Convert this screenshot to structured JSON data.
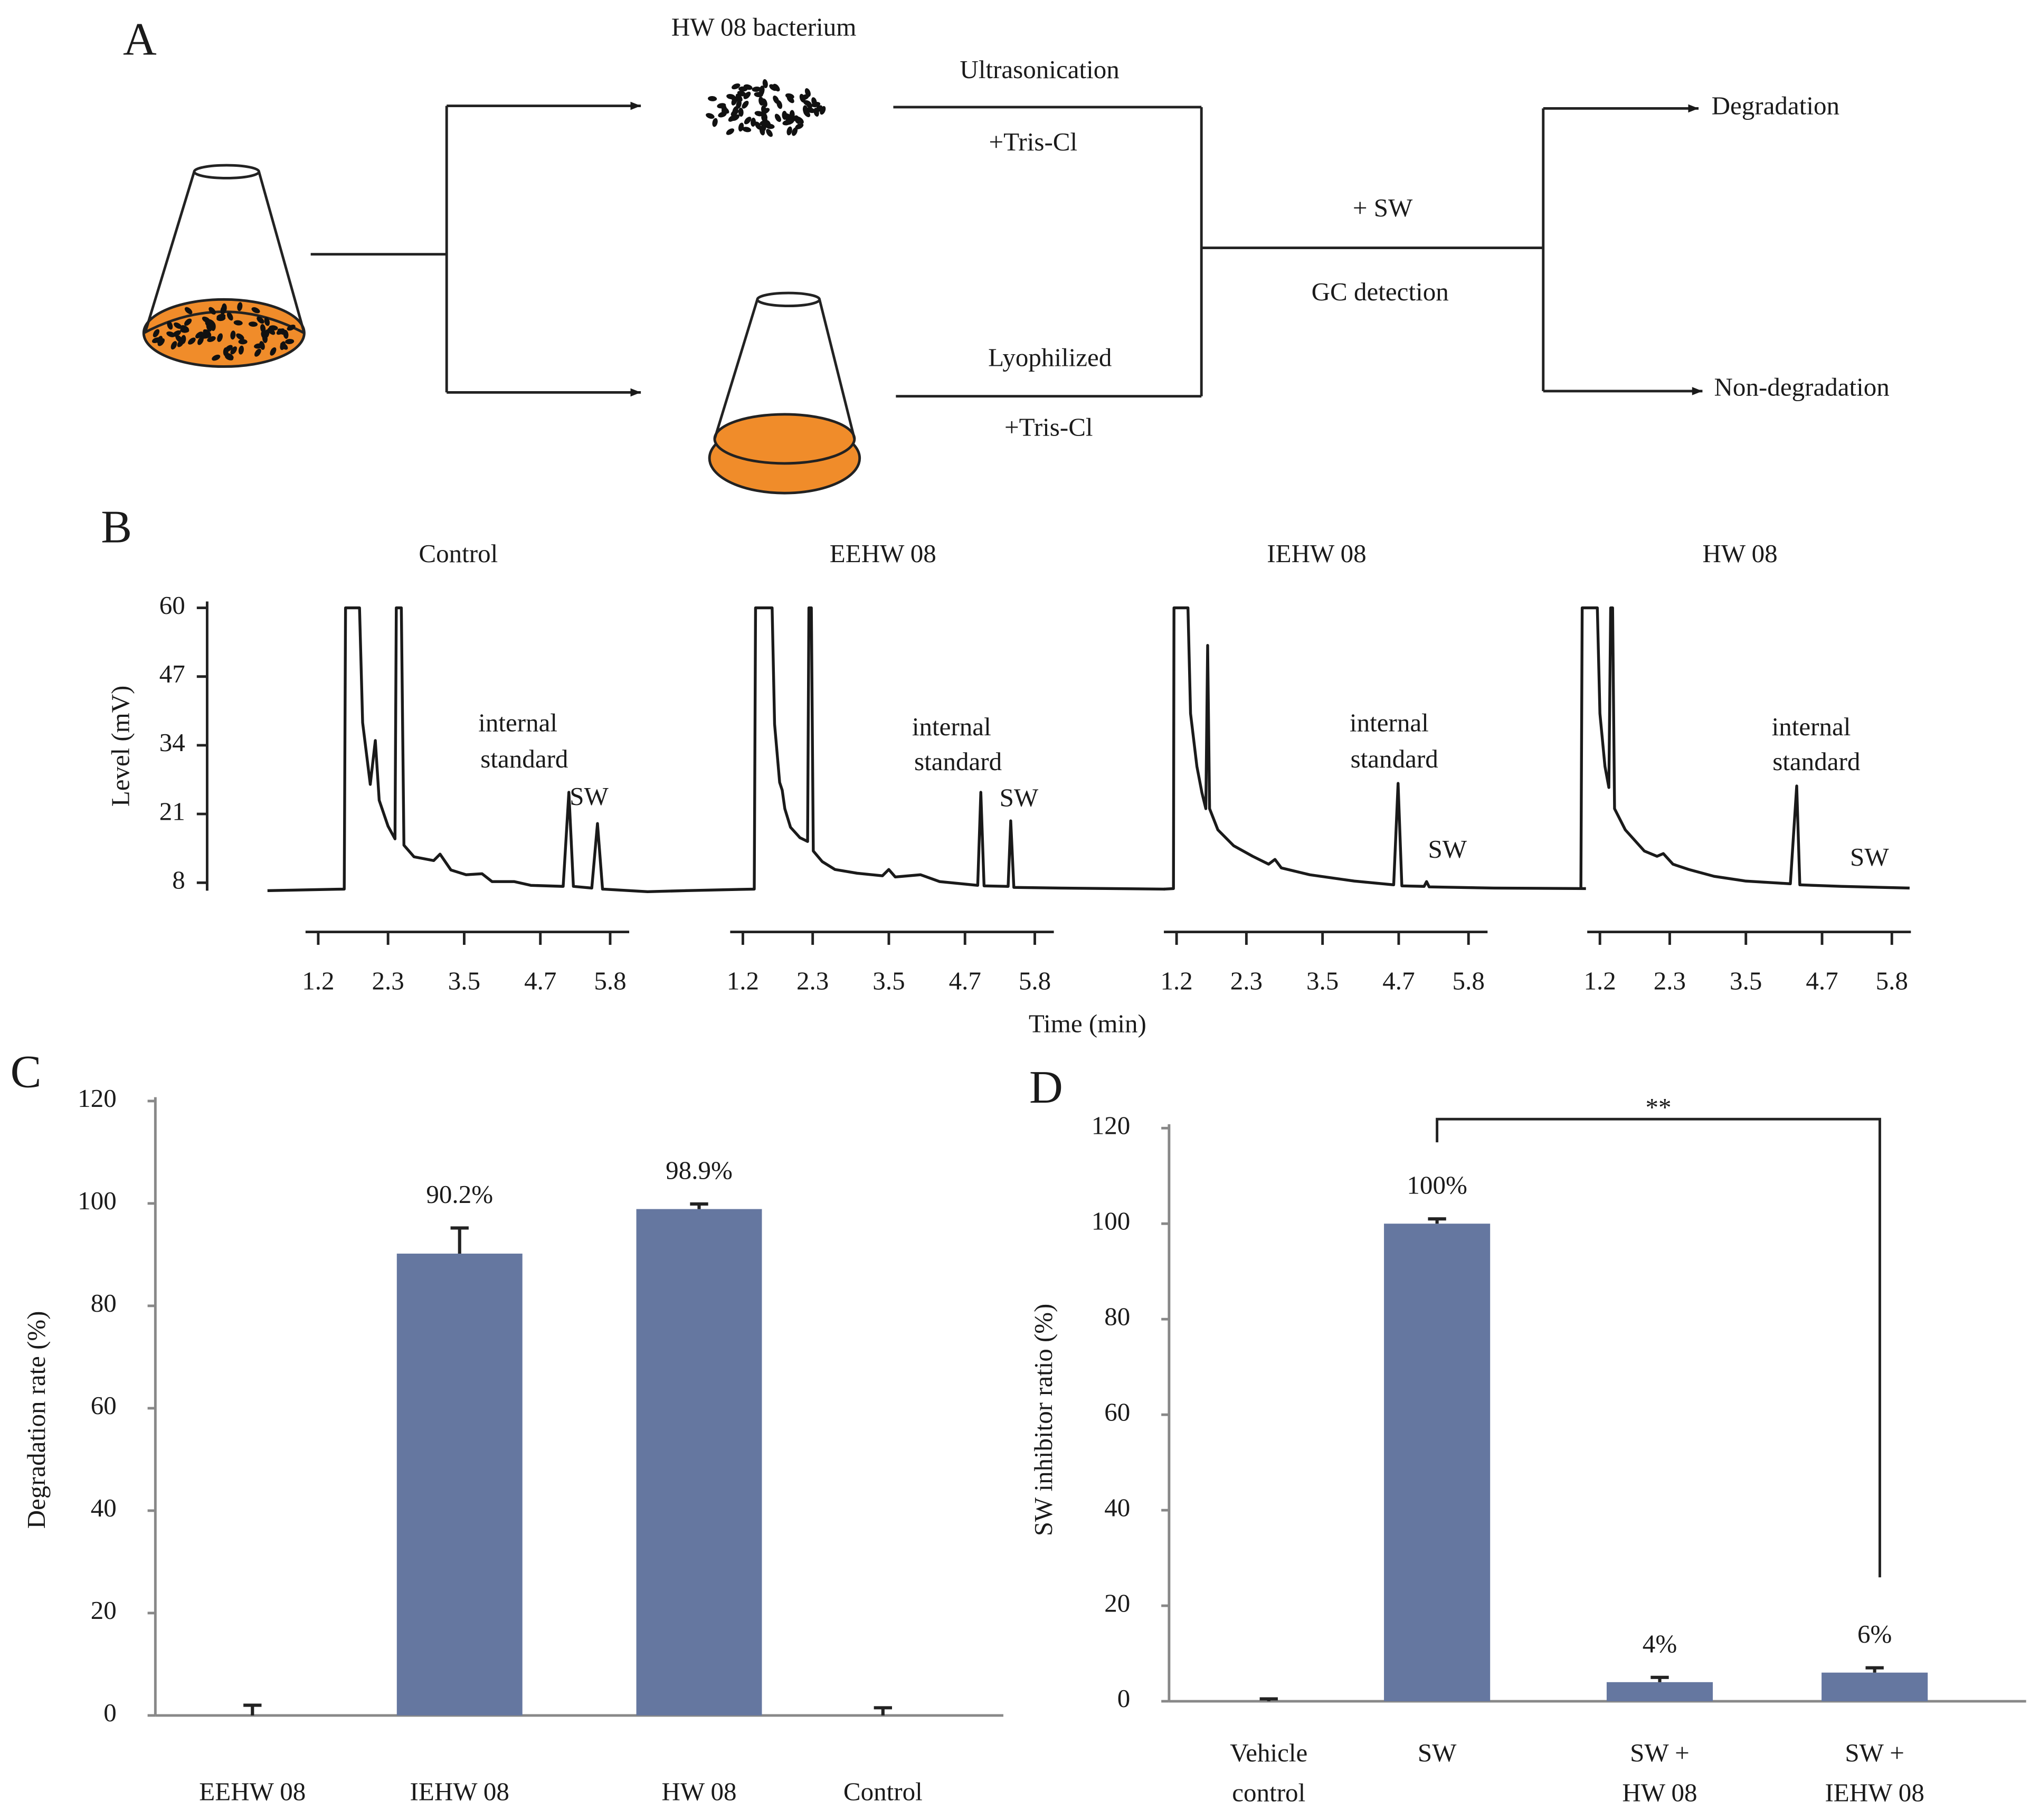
{
  "diagram": {
    "label": "A",
    "bacterium": "HW 08 bacterium",
    "step1_top": "Ultrasonication",
    "step1_bottom": "+Tris-Cl",
    "step2_top": "Lyophilized",
    "step2_bottom": "+Tris-Cl",
    "merge_top": "+ SW",
    "merge_bottom": "GC detection",
    "outcome_1": "Degradation",
    "outcome_2": "Non-degradation"
  },
  "chart_data": [
    {
      "type": "line",
      "label": "B",
      "ylabel": "Level (mV)",
      "xlabel": "Time (min)",
      "ylim": [
        6.5,
        61.2
      ],
      "yticks": [
        8,
        21,
        34,
        47,
        60
      ],
      "xlim": [
        1.0,
        6.1
      ],
      "xticks": [
        1.2,
        2.3,
        3.5,
        4.7,
        5.8
      ],
      "color": "#1a1a1a",
      "series": [
        {
          "name": "Control",
          "annotations": [
            "internal",
            "standard",
            "SW"
          ],
          "x": [
            0.4,
            1.61,
            1.63,
            1.85,
            1.9,
            2.02,
            2.1,
            2.16,
            2.3,
            2.41,
            2.43,
            2.51,
            2.55,
            2.71,
            3.02,
            3.12,
            3.29,
            3.53,
            3.78,
            3.94,
            4.29,
            4.55,
            5.06,
            5.15,
            5.22,
            5.51,
            5.6,
            5.68,
            6.39,
            7.0
          ],
          "values": [
            6.5,
            6.8,
            60,
            60,
            38.3,
            26.6,
            34.9,
            23.6,
            18.7,
            16.3,
            60,
            60,
            15.1,
            12.9,
            12.2,
            13.4,
            10.4,
            9.5,
            9.7,
            8.2,
            8.2,
            7.5,
            7.3,
            25.1,
            7.3,
            7.0,
            19.2,
            6.8,
            6.3,
            6.5
          ]
        },
        {
          "name": "EEHW 08",
          "annotations": [
            "internal",
            "standard",
            "SW"
          ],
          "x": [
            0.3,
            1.38,
            1.4,
            1.66,
            1.7,
            1.78,
            1.82,
            1.86,
            1.95,
            2.1,
            2.22,
            2.24,
            2.28,
            2.31,
            2.45,
            2.65,
            3.0,
            3.4,
            3.5,
            3.6,
            4.0,
            4.3,
            4.9,
            4.95,
            5.0,
            5.38,
            5.42,
            5.47,
            6.2,
            7.85
          ],
          "values": [
            6.5,
            6.8,
            60,
            60,
            38,
            27,
            25.5,
            22,
            18.5,
            16.5,
            15.8,
            60,
            60,
            14,
            12,
            10.5,
            9.8,
            9.3,
            10.5,
            9.1,
            9.5,
            8.2,
            7.5,
            25.1,
            7.4,
            7.3,
            19.7,
            7.1,
            7.0,
            6.8
          ]
        },
        {
          "name": "IEHW 08",
          "annotations": [
            "internal",
            "standard",
            "SW"
          ],
          "x": [
            1.0,
            1.15,
            1.16,
            1.38,
            1.42,
            1.52,
            1.6,
            1.66,
            1.69,
            1.72,
            1.85,
            2.1,
            2.4,
            2.65,
            2.75,
            2.85,
            3.3,
            4.0,
            4.62,
            4.69,
            4.75,
            5.1,
            5.14,
            5.18,
            6.2,
            7.65
          ],
          "values": [
            6.8,
            6.9,
            60,
            60,
            40,
            30,
            25,
            22,
            52.9,
            22,
            18,
            15,
            13,
            11.5,
            12.4,
            10.8,
            9.5,
            8.3,
            7.6,
            26.8,
            7.4,
            7.3,
            8.2,
            7.2,
            7.0,
            6.9
          ]
        },
        {
          "name": "HW 08",
          "annotations": [
            "internal",
            "standard",
            "SW"
          ],
          "x": [
            0.9,
            0.92,
            1.16,
            1.2,
            1.28,
            1.34,
            1.37,
            1.4,
            1.43,
            1.6,
            1.9,
            2.1,
            2.2,
            2.35,
            2.6,
            3.0,
            3.5,
            4.2,
            4.3,
            4.35,
            5.0,
            6.08
          ],
          "values": [
            6.7,
            60,
            60,
            40,
            30,
            26,
            60,
            60,
            22,
            18,
            14,
            13,
            13.5,
            11.5,
            10.5,
            9.2,
            8.3,
            7.8,
            26.3,
            7.6,
            7.3,
            7.0
          ]
        }
      ]
    },
    {
      "type": "bar",
      "label": "C",
      "ylabel": "Degradation rate (%)",
      "categories": [
        [
          "EEHW 08"
        ],
        [
          "IEHW 08"
        ],
        [
          "HW 08"
        ],
        [
          "Control"
        ]
      ],
      "values": [
        0,
        90.2,
        98.9,
        0
      ],
      "errors": [
        2,
        5,
        1,
        1.5
      ],
      "value_labels": [
        null,
        "90.2%",
        "98.9%",
        null
      ],
      "color": "#6577a0",
      "ylim": [
        0,
        120
      ],
      "yticks": [
        0,
        20,
        40,
        60,
        80,
        100,
        120
      ]
    },
    {
      "type": "bar",
      "label": "D",
      "ylabel": "SW inhibitor ratio (%)",
      "categories": [
        [
          "Vehicle",
          "control"
        ],
        [
          "SW"
        ],
        [
          "SW +",
          "HW 08"
        ],
        [
          "SW +",
          "IEHW 08"
        ]
      ],
      "values": [
        0,
        100,
        4,
        6
      ],
      "errors": [
        0.5,
        1,
        1,
        1
      ],
      "value_labels": [
        null,
        "100%",
        "4%",
        "6%"
      ],
      "annotation": "**",
      "color": "#6577a0",
      "ylim": [
        0,
        120
      ],
      "yticks": [
        0,
        20,
        40,
        60,
        80,
        100,
        120
      ]
    }
  ]
}
